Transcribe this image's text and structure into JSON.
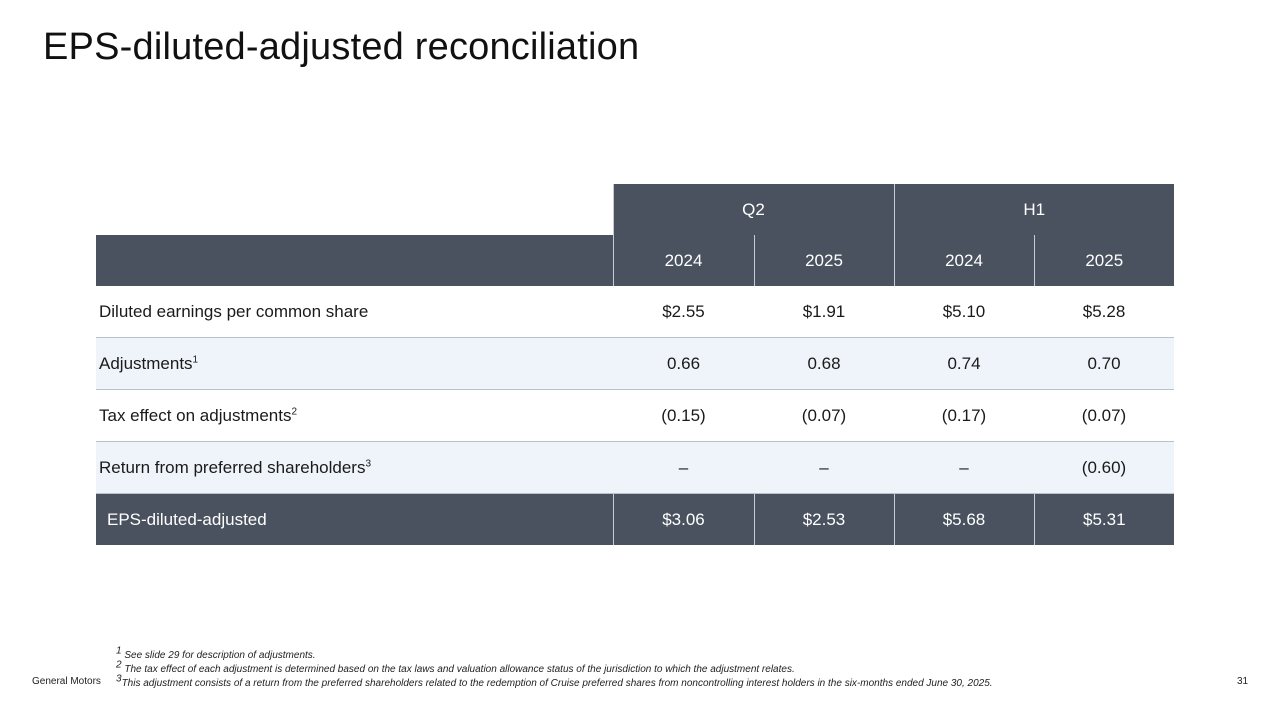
{
  "title": "EPS-diluted-adjusted reconciliation",
  "table": {
    "period_headers": [
      "Q2",
      "H1"
    ],
    "year_headers": [
      "2024",
      "2025",
      "2024",
      "2025"
    ],
    "rows": [
      {
        "label": "Diluted earnings per common share",
        "sup": "",
        "values": [
          "$2.55",
          "$1.91",
          "$5.10",
          "$5.28"
        ]
      },
      {
        "label": "Adjustments",
        "sup": "1",
        "values": [
          "0.66",
          "0.68",
          "0.74",
          "0.70"
        ]
      },
      {
        "label": "Tax effect on adjustments",
        "sup": "2",
        "values": [
          "(0.15)",
          "(0.07)",
          "(0.17)",
          "(0.07)"
        ]
      },
      {
        "label": "Return from preferred shareholders",
        "sup": "3",
        "values": [
          "–",
          "–",
          "–",
          "(0.60)"
        ]
      }
    ],
    "total": {
      "label": "EPS-diluted-adjusted",
      "values": [
        "$3.06",
        "$2.53",
        "$5.68",
        "$5.31"
      ]
    }
  },
  "footnotes": [
    {
      "marker": "1",
      "text": "See slide 29 for description of adjustments."
    },
    {
      "marker": "2",
      "text": "The tax effect of each adjustment is determined based on the tax laws and valuation allowance status of the jurisdiction to which the adjustment relates."
    },
    {
      "marker": "3",
      "text": "This adjustment consists of a return from the preferred shareholders related to the redemption of Cruise preferred shares from noncontrolling interest holders in the six-months ended June 30, 2025."
    }
  ],
  "footer": {
    "company": "General Motors",
    "page": "31"
  },
  "colors": {
    "header_bg": "#49525e",
    "alt_row_bg": "#eef4fa",
    "row_rule": "#b9c2cc"
  }
}
